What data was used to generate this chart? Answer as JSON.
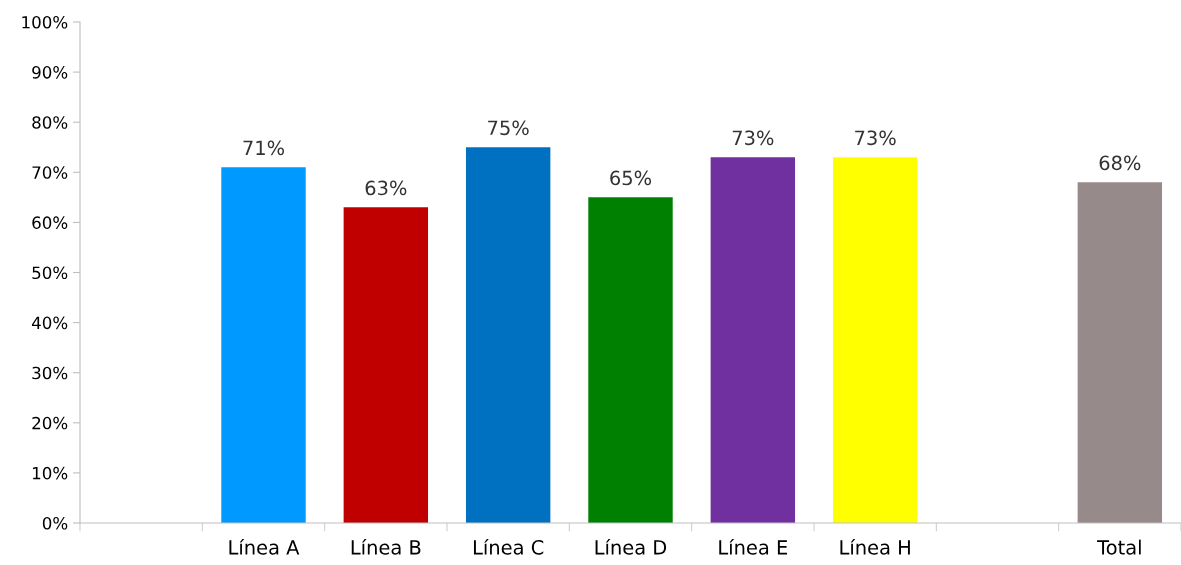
{
  "chart_data": {
    "type": "bar",
    "categories": [
      null,
      "Línea A",
      "Línea B",
      "Línea C",
      "Línea D",
      "Línea E",
      "Línea H",
      null,
      "Total"
    ],
    "values": [
      null,
      71,
      63,
      75,
      65,
      73,
      73,
      null,
      68
    ],
    "colors": [
      "#808080",
      "#0099ff",
      "#c00000",
      "#0070c0",
      "#008000",
      "#7030a0",
      "#ffff00",
      "#808080",
      "#968b8a"
    ],
    "value_labels": [
      null,
      "71%",
      "63%",
      "75%",
      "65%",
      "73%",
      "73%",
      null,
      "68%"
    ],
    "ylim": [
      0,
      100
    ],
    "yticks": [
      {
        "value": 0,
        "label": "0%"
      },
      {
        "value": 10,
        "label": "10%"
      },
      {
        "value": 20,
        "label": "20%"
      },
      {
        "value": 30,
        "label": "30%"
      },
      {
        "value": 40,
        "label": "40%"
      },
      {
        "value": 50,
        "label": "50%"
      },
      {
        "value": 60,
        "label": "60%"
      },
      {
        "value": 70,
        "label": "70%"
      },
      {
        "value": 80,
        "label": "80%"
      },
      {
        "value": 90,
        "label": "90%"
      },
      {
        "value": 100,
        "label": "100%"
      }
    ],
    "grid": false,
    "legend": false
  }
}
